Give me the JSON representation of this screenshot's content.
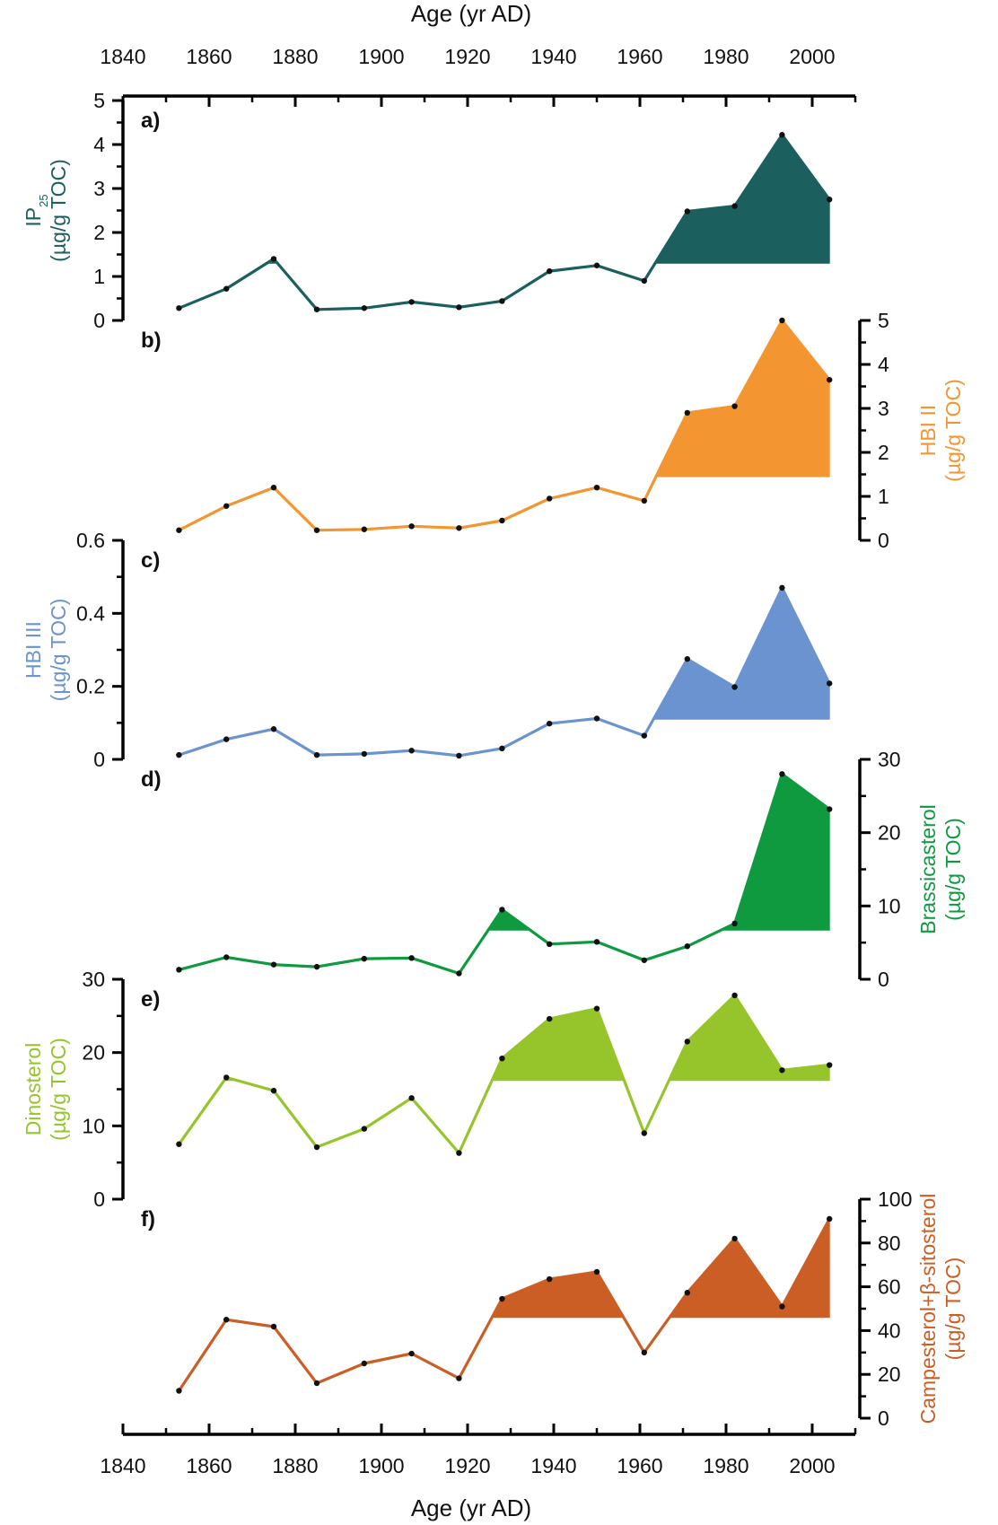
{
  "chart_data": {
    "type": "line",
    "x_axis": {
      "label": "Age (yr AD)",
      "xlim": [
        1840,
        2010
      ],
      "ticks": [
        "1840",
        "1860",
        "1880",
        "1900",
        "1920",
        "1940",
        "1960",
        "1980",
        "2000"
      ]
    },
    "x": [
      1853,
      1864,
      1875,
      1885,
      1896,
      1907,
      1918,
      1928,
      1939,
      1950,
      1961,
      1971,
      1982,
      1993,
      2004
    ],
    "panels": [
      {
        "letter": "a)",
        "ylabel_main": "IP",
        "ylabel_sub": "25",
        "ylabel_unit": "(µg/g TOC)",
        "color": "#1b5f5e",
        "ylim": [
          0,
          5
        ],
        "yticks": [
          "0",
          "1",
          "2",
          "3",
          "4",
          "5"
        ],
        "axis_side": "left",
        "values": [
          0.28,
          0.72,
          1.4,
          0.25,
          0.28,
          0.42,
          0.3,
          0.44,
          1.12,
          1.25,
          0.9,
          2.48,
          2.6,
          4.22,
          2.75
        ],
        "fill_baseline": 1.3
      },
      {
        "letter": "b)",
        "ylabel_main": "HBI II",
        "ylabel_sub": "",
        "ylabel_unit": "(µg/g TOC)",
        "color": "#f39530",
        "ylim": [
          0,
          5
        ],
        "yticks": [
          "0",
          "1",
          "2",
          "3",
          "4",
          "5"
        ],
        "axis_side": "right",
        "values": [
          0.23,
          0.78,
          1.2,
          0.23,
          0.25,
          0.32,
          0.28,
          0.45,
          0.95,
          1.2,
          0.9,
          2.9,
          3.05,
          5.0,
          3.65
        ],
        "fill_baseline": 1.45
      },
      {
        "letter": "c)",
        "ylabel_main": "HBI III",
        "ylabel_sub": "",
        "ylabel_unit": "(µg/g TOC)",
        "color": "#6a93cf",
        "ylim": [
          0,
          0.6
        ],
        "yticks": [
          "0",
          "0.2",
          "0.4",
          "0.6"
        ],
        "axis_side": "left",
        "values": [
          0.012,
          0.055,
          0.083,
          0.012,
          0.015,
          0.024,
          0.01,
          0.03,
          0.098,
          0.112,
          0.065,
          0.275,
          0.198,
          0.47,
          0.208
        ],
        "fill_baseline": 0.11
      },
      {
        "letter": "d)",
        "ylabel_main": "Brassicasterol",
        "ylabel_sub": "",
        "ylabel_unit": "(µg/g TOC)",
        "color": "#0f9a3f",
        "ylim": [
          0,
          30
        ],
        "yticks": [
          "0",
          "10",
          "20",
          "30"
        ],
        "axis_side": "right",
        "values": [
          1.3,
          3.0,
          2.0,
          1.7,
          2.8,
          2.9,
          0.8,
          9.5,
          4.8,
          5.1,
          2.6,
          4.5,
          7.6,
          28.0,
          23.2
        ],
        "fill_baseline": 6.7
      },
      {
        "letter": "e)",
        "ylabel_main": "Dinosterol",
        "ylabel_sub": "",
        "ylabel_unit": "(µg/g TOC)",
        "color": "#95c52b",
        "ylim": [
          0,
          30
        ],
        "yticks": [
          "0",
          "10",
          "20",
          "30"
        ],
        "axis_side": "left",
        "values": [
          7.5,
          16.6,
          14.8,
          7.1,
          9.6,
          13.8,
          6.3,
          19.2,
          24.6,
          26.0,
          9.0,
          21.5,
          27.8,
          17.6,
          18.3
        ],
        "fill_baseline": 16.2
      },
      {
        "letter": "f)",
        "ylabel_main": "Campesterol+β-sitosterol",
        "ylabel_sub": "",
        "ylabel_unit": "(µg/g TOC)",
        "color": "#cb5e24",
        "ylim": [
          0,
          100
        ],
        "yticks": [
          "0",
          "20",
          "40",
          "60",
          "80",
          "100"
        ],
        "axis_side": "right",
        "values": [
          12.5,
          45.0,
          41.8,
          16.0,
          25.0,
          29.5,
          18.2,
          54.5,
          63.5,
          66.8,
          30.0,
          57.3,
          82.0,
          51.0,
          91.0
        ],
        "fill_baseline": 46
      }
    ]
  }
}
